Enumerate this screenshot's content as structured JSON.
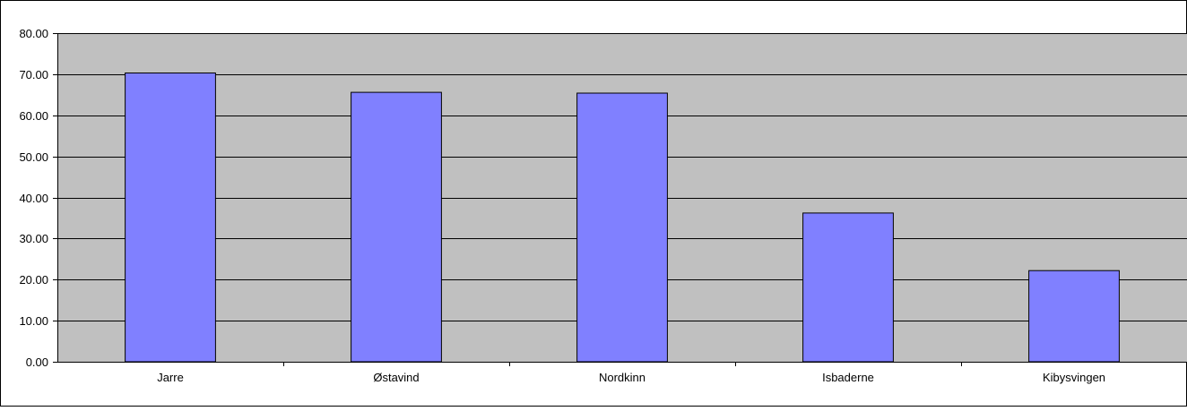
{
  "chart_data": {
    "type": "bar",
    "categories": [
      "Jarre",
      "Østavind",
      "Nordkinn",
      "Isbaderne",
      "Kibysvingen"
    ],
    "values": [
      70.3,
      65.6,
      65.4,
      36.2,
      22.2
    ],
    "yticks": [
      "0.00",
      "10.00",
      "20.00",
      "30.00",
      "40.00",
      "50.00",
      "60.00",
      "70.00",
      "80.00"
    ],
    "ylim": [
      0,
      80
    ],
    "title": "",
    "xlabel": "",
    "ylabel": "",
    "grid": true,
    "legend": "none",
    "colors": {
      "bar_fill": "#8080ff",
      "bar_stroke": "#000000",
      "plot_background": "#c0c0c0",
      "gridline": "#000000",
      "page_background": "#ffffff"
    }
  }
}
